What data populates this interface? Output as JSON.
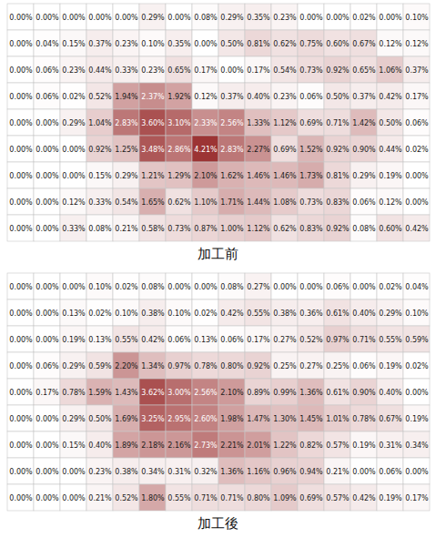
{
  "chart_data": [
    {
      "type": "heatmap",
      "title": "加工前",
      "data_labels": true,
      "tick_labels": false,
      "cells": [
        [
          0,
          0,
          0,
          0,
          0,
          0.29,
          0,
          0.08,
          0.29,
          0.35,
          0.23,
          0,
          0,
          0.02,
          0,
          0.1
        ],
        [
          0,
          0.04,
          0.15,
          0.37,
          0.23,
          0.1,
          0.35,
          0,
          0.5,
          0.81,
          0.62,
          0.75,
          0.6,
          0.67,
          0.12,
          0.12
        ],
        [
          0,
          0.06,
          0.23,
          0.44,
          0.33,
          0.23,
          0.65,
          0.17,
          0,
          0.17,
          0.54,
          0.73,
          0.92,
          0.65,
          1.06,
          0.37
        ],
        [
          0,
          0.06,
          0.02,
          0.52,
          1.94,
          2.37,
          1.92,
          0.12,
          0.37,
          0.4,
          0.23,
          0.06,
          0.5,
          0.37,
          0.42,
          0.17
        ],
        [
          0,
          0,
          0.29,
          1.04,
          2.83,
          3.6,
          3.1,
          2.33,
          2.56,
          1.33,
          1.12,
          0.69,
          0.71,
          1.42,
          0.5,
          0.06
        ],
        [
          0,
          0,
          0,
          0.92,
          1.25,
          3.48,
          2.86,
          4.21,
          2.83,
          2.27,
          0.69,
          1.52,
          0.92,
          0.9,
          0.44,
          0.02
        ],
        [
          0,
          0,
          0,
          0.15,
          0.29,
          1.21,
          1.29,
          2.1,
          1.62,
          1.46,
          1.46,
          1.73,
          0.81,
          0.29,
          0.19,
          0
        ],
        [
          0,
          0,
          0.12,
          0.33,
          0.54,
          1.65,
          0.62,
          1.1,
          1.71,
          1.44,
          1.08,
          0.73,
          0.83,
          0.06,
          0.12,
          0
        ],
        [
          0,
          0,
          0.33,
          0.08,
          0.21,
          0.58,
          0.73,
          0.87,
          1.0,
          1.12,
          0.62,
          0.83,
          0.92,
          0.08,
          0.6,
          0.42
        ]
      ],
      "value_labels": [
        [
          "0.00%",
          "0.00%",
          "0.00%",
          "0.00%",
          "0.00%",
          "0.29%",
          "0.00%",
          "0.08%",
          "0.29%",
          "0.35%",
          "0.23%",
          "0.00%",
          "0.00%",
          "0.02%",
          "0.00%",
          "0.10%"
        ],
        [
          "0.00%",
          "0.04%",
          "0.15%",
          "0.37%",
          "0.23%",
          "0.10%",
          "0.35%",
          "0.00%",
          "0.50%",
          "0.81%",
          "0.62%",
          "0.75%",
          "0.60%",
          "0.67%",
          "0.12%",
          "0.12%"
        ],
        [
          "0.00%",
          "0.06%",
          "0.23%",
          "0.44%",
          "0.33%",
          "0.23%",
          "0.65%",
          "0.17%",
          "0.00%",
          "0.17%",
          "0.54%",
          "0.73%",
          "0.92%",
          "0.65%",
          "1.06%",
          "0.37%"
        ],
        [
          "0.00%",
          "0.06%",
          "0.02%",
          "0.52%",
          "1.94%",
          "2.37%",
          "1.92%",
          "0.12%",
          "0.37%",
          "0.40%",
          "0.23%",
          "0.06%",
          "0.50%",
          "0.37%",
          "0.42%",
          "0.17%"
        ],
        [
          "0.00%",
          "0.00%",
          "0.29%",
          "1.04%",
          "2.83%",
          "3.60%",
          "3.10%",
          "2.33%",
          "2.56%",
          "1.33%",
          "1.12%",
          "0.69%",
          "0.71%",
          "1.42%",
          "0.50%",
          "0.06%"
        ],
        [
          "0.00%",
          "0.00%",
          "0.00%",
          "0.92%",
          "1.25%",
          "3.48%",
          "2.86%",
          "4.21%",
          "2.83%",
          "2.27%",
          "0.69%",
          "1.52%",
          "0.92%",
          "0.90%",
          "0.44%",
          "0.02%"
        ],
        [
          "0.00%",
          "0.00%",
          "0.00%",
          "0.15%",
          "0.29%",
          "1.21%",
          "1.29%",
          "2.10%",
          "1.62%",
          "1.46%",
          "1.46%",
          "1.73%",
          "0.81%",
          "0.29%",
          "0.19%",
          "0.00%"
        ],
        [
          "0.00%",
          "0.00%",
          "0.12%",
          "0.33%",
          "0.54%",
          "1.65%",
          "0.62%",
          "1.10%",
          "1.71%",
          "1.44%",
          "1.08%",
          "0.73%",
          "0.83%",
          "0.06%",
          "0.12%",
          "0.00%"
        ],
        [
          "0.00%",
          "0.00%",
          "0.33%",
          "0.08%",
          "0.21%",
          "0.58%",
          "0.73%",
          "0.87%",
          "1.00%",
          "1.12%",
          "0.62%",
          "0.83%",
          "0.92%",
          "0.08%",
          "0.60%",
          "0.42%"
        ]
      ]
    },
    {
      "type": "heatmap",
      "title": "加工後",
      "data_labels": true,
      "tick_labels": false,
      "cells": [
        [
          0,
          0,
          0,
          0.1,
          0.02,
          0.08,
          0,
          0,
          0.08,
          0.27,
          0,
          0,
          0.06,
          0,
          0.02,
          0.04
        ],
        [
          0,
          0,
          0.13,
          0.02,
          0.1,
          0.38,
          0.1,
          0.02,
          0.42,
          0.55,
          0.38,
          0.36,
          0.61,
          0.4,
          0.29,
          0.1
        ],
        [
          0,
          0,
          0.19,
          0.13,
          0.55,
          0.42,
          0.06,
          0.13,
          0.06,
          0.17,
          0.27,
          0.52,
          0.97,
          0.71,
          0.55,
          0.59
        ],
        [
          0,
          0.06,
          0.29,
          0.59,
          2.2,
          1.34,
          0.97,
          0.78,
          0.8,
          0.92,
          0.25,
          0.27,
          0.25,
          0.06,
          0.19,
          0.02
        ],
        [
          0,
          0.17,
          0.78,
          1.59,
          1.43,
          3.62,
          3.0,
          2.56,
          2.1,
          0.89,
          0.99,
          1.36,
          0.61,
          0.9,
          0.4,
          0
        ],
        [
          0,
          0,
          0.29,
          0.5,
          1.69,
          3.25,
          2.95,
          2.6,
          1.98,
          1.47,
          1.3,
          1.45,
          1.01,
          0.78,
          0.67,
          0.19
        ],
        [
          0,
          0,
          0.15,
          0.4,
          1.89,
          2.18,
          2.16,
          2.73,
          2.21,
          2.01,
          1.22,
          0.82,
          0.57,
          0.19,
          0.31,
          0.34
        ],
        [
          0,
          0,
          0,
          0.23,
          0.38,
          0.34,
          0.31,
          0.32,
          1.36,
          1.16,
          0.96,
          0.94,
          0.21,
          0,
          0.06,
          0
        ],
        [
          0,
          0,
          0,
          0.21,
          0.52,
          1.8,
          0.55,
          0.71,
          0.71,
          0.8,
          1.09,
          0.69,
          0.57,
          0.42,
          0.19,
          0.17
        ]
      ],
      "value_labels": [
        [
          "0.00%",
          "0.00%",
          "0.00%",
          "0.10%",
          "0.02%",
          "0.08%",
          "0.00%",
          "0.00%",
          "0.08%",
          "0.27%",
          "0.00%",
          "0.00%",
          "0.06%",
          "0.00%",
          "0.02%",
          "0.04%"
        ],
        [
          "0.00%",
          "0.00%",
          "0.13%",
          "0.02%",
          "0.10%",
          "0.38%",
          "0.10%",
          "0.02%",
          "0.42%",
          "0.55%",
          "0.38%",
          "0.36%",
          "0.61%",
          "0.40%",
          "0.29%",
          "0.10%"
        ],
        [
          "0.00%",
          "0.00%",
          "0.19%",
          "0.13%",
          "0.55%",
          "0.42%",
          "0.06%",
          "0.13%",
          "0.06%",
          "0.17%",
          "0.27%",
          "0.52%",
          "0.97%",
          "0.71%",
          "0.55%",
          "0.59%"
        ],
        [
          "0.00%",
          "0.06%",
          "0.29%",
          "0.59%",
          "2.20%",
          "1.34%",
          "0.97%",
          "0.78%",
          "0.80%",
          "0.92%",
          "0.25%",
          "0.27%",
          "0.25%",
          "0.06%",
          "0.19%",
          "0.02%"
        ],
        [
          "0.00%",
          "0.17%",
          "0.78%",
          "1.59%",
          "1.43%",
          "3.62%",
          "3.00%",
          "2.56%",
          "2.10%",
          "0.89%",
          "0.99%",
          "1.36%",
          "0.61%",
          "0.90%",
          "0.40%",
          "0.00%"
        ],
        [
          "0.00%",
          "0.00%",
          "0.29%",
          "0.50%",
          "1.69%",
          "3.25%",
          "2.95%",
          "2.60%",
          "1.98%",
          "1.47%",
          "1.30%",
          "1.45%",
          "1.01%",
          "0.78%",
          "0.67%",
          "0.19%"
        ],
        [
          "0.00%",
          "0.00%",
          "0.15%",
          "0.40%",
          "1.89%",
          "2.18%",
          "2.16%",
          "2.73%",
          "2.21%",
          "2.01%",
          "1.22%",
          "0.82%",
          "0.57%",
          "0.19%",
          "0.31%",
          "0.34%"
        ],
        [
          "0.00%",
          "0.00%",
          "0.00%",
          "0.23%",
          "0.38%",
          "0.34%",
          "0.31%",
          "0.32%",
          "1.36%",
          "1.16%",
          "0.96%",
          "0.94%",
          "0.21%",
          "0.00%",
          "0.06%",
          "0.00%"
        ],
        [
          "0.00%",
          "0.00%",
          "0.00%",
          "0.21%",
          "0.52%",
          "1.80%",
          "0.55%",
          "0.71%",
          "0.71%",
          "0.80%",
          "1.09%",
          "0.69%",
          "0.57%",
          "0.42%",
          "0.19%",
          "0.17%"
        ]
      ]
    }
  ]
}
